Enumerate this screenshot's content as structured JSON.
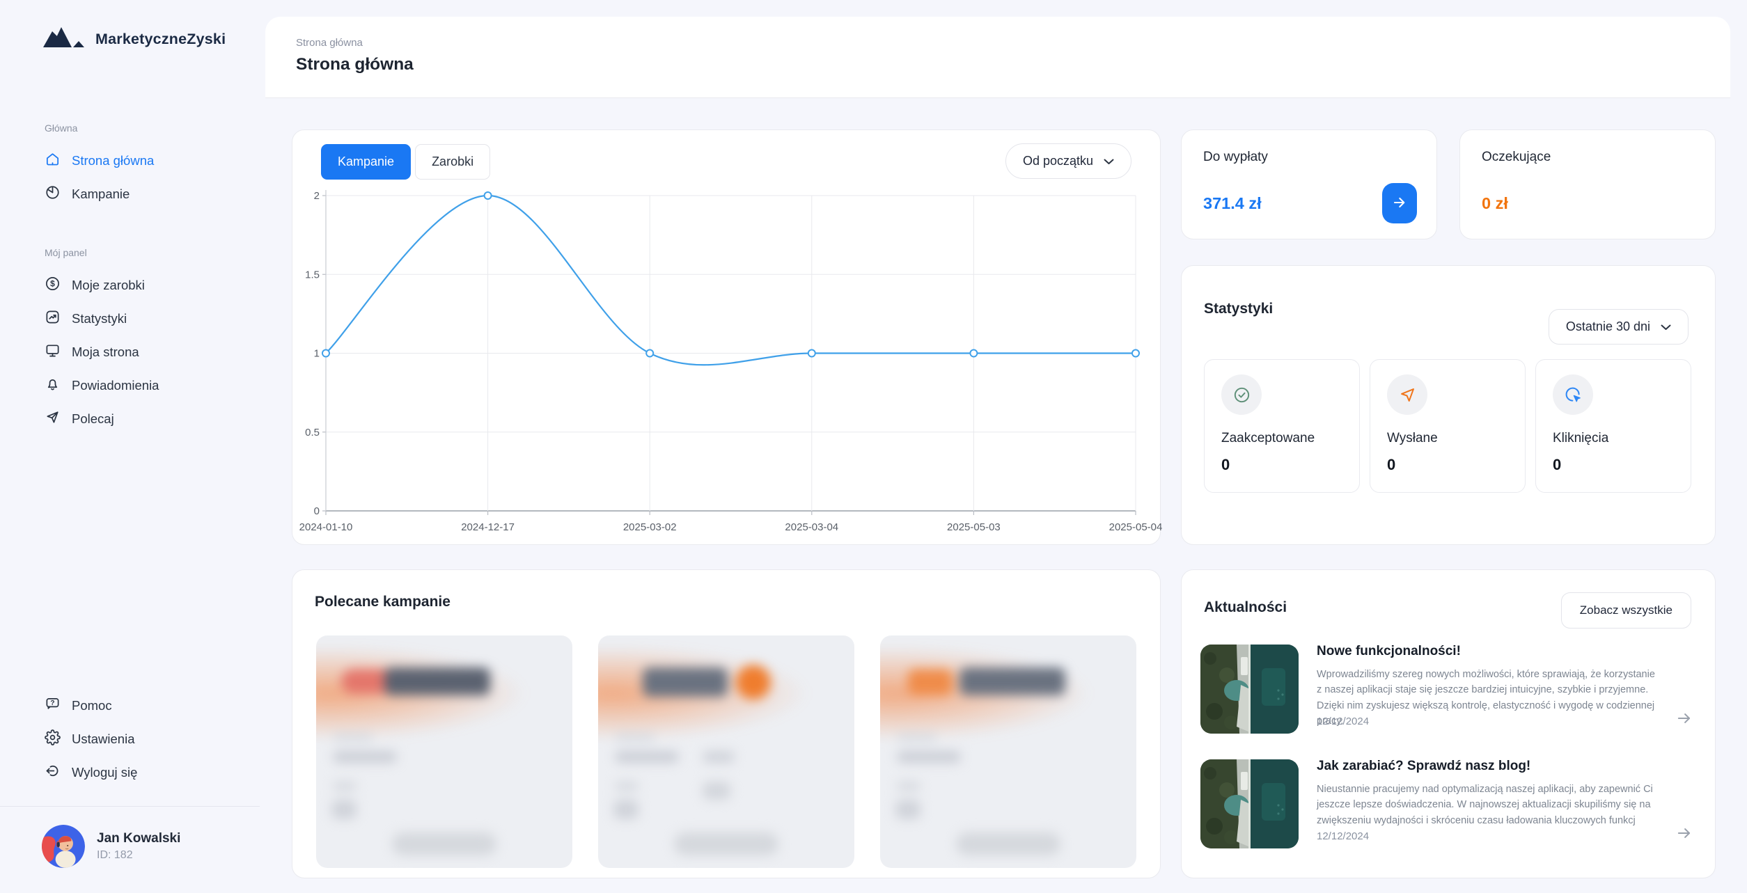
{
  "brand": {
    "name": "MarketyczneZyski"
  },
  "sidebar": {
    "sections": [
      {
        "label": "Główna",
        "items": [
          {
            "label": "Strona główna",
            "icon": "home-icon",
            "active": true
          },
          {
            "label": "Kampanie",
            "icon": "pie-chart-icon",
            "active": false
          }
        ]
      },
      {
        "label": "Mój panel",
        "items": [
          {
            "label": "Moje zarobki",
            "icon": "dollar-circle-icon",
            "active": false
          },
          {
            "label": "Statystyki",
            "icon": "trend-chart-icon",
            "active": false
          },
          {
            "label": "Moja strona",
            "icon": "monitor-icon",
            "active": false
          },
          {
            "label": "Powiadomienia",
            "icon": "bell-icon",
            "active": false
          },
          {
            "label": "Polecaj",
            "icon": "send-icon",
            "active": false
          }
        ]
      }
    ],
    "footer_items": [
      {
        "label": "Pomoc",
        "icon": "help-bubble-icon"
      },
      {
        "label": "Ustawienia",
        "icon": "gear-icon"
      },
      {
        "label": "Wyloguj się",
        "icon": "logout-icon"
      }
    ],
    "user": {
      "name": "Jan Kowalski",
      "id": "ID: 182"
    }
  },
  "header": {
    "breadcrumb": "Strona główna",
    "title": "Strona główna"
  },
  "chart_card": {
    "tabs": [
      {
        "label": "Kampanie",
        "active": true
      },
      {
        "label": "Zarobki",
        "active": false
      }
    ],
    "range": "Od początku"
  },
  "chart_data": {
    "type": "line",
    "title": "",
    "x": [
      "2024-01-10",
      "2024-12-17",
      "2025-03-02",
      "2025-03-04",
      "2025-05-03",
      "2025-05-04"
    ],
    "series": [
      {
        "name": "Kampanie",
        "values": [
          1,
          2,
          1,
          1,
          1,
          1
        ]
      }
    ],
    "ylim": [
      0,
      2
    ],
    "yticks": [
      0,
      0.5,
      1,
      1.5,
      2
    ],
    "line_color": "#3fa0e9",
    "marker": "open-circle",
    "grid": true,
    "smooth": true,
    "legend": "none"
  },
  "payout": {
    "label": "Do wypłaty",
    "value": "371.4 zł"
  },
  "pending": {
    "label": "Oczekujące",
    "value": "0 zł"
  },
  "stats": {
    "title": "Statystyki",
    "range": "Ostatnie 30 dni",
    "items": [
      {
        "label": "Zaakceptowane",
        "value": "0",
        "icon": "check-circle-icon",
        "color": "#5d8f77"
      },
      {
        "label": "Wysłane",
        "value": "0",
        "icon": "send-icon",
        "color": "#f0761c"
      },
      {
        "label": "Kliknięcia",
        "value": "0",
        "icon": "cursor-click-icon",
        "color": "#2e87f5"
      }
    ]
  },
  "campaigns": {
    "title": "Polecane kampanie",
    "cards_count": 3
  },
  "news": {
    "title": "Aktualności",
    "see_all": "Zobacz wszystkie",
    "items": [
      {
        "title": "Nowe funkcjonalności!",
        "body": "Wprowadziliśmy szereg nowych możliwości, które sprawiają, że korzystanie z naszej aplikacji staje się jeszcze bardziej intuicyjne, szybkie i przyjemne. Dzięki nim zyskujesz większą kontrolę, elastyczność i wygodę w codziennej pracy.",
        "date": "12/12/2024"
      },
      {
        "title": "Jak zarabiać? Sprawdź nasz blog!",
        "body": "Nieustannie pracujemy nad optymalizacją naszej aplikacji, aby zapewnić Ci jeszcze lepsze doświadczenia. W najnowszej aktualizacji skupiliśmy się na zwiększeniu wydajności i skróceniu czasu ładowania kluczowych funkcj",
        "date": "12/12/2024"
      }
    ]
  },
  "colors": {
    "accent_blue": "#1a78f3",
    "accent_orange": "#f2740d",
    "chart_blue": "#3fa0e9",
    "navy": "#1b2a44"
  }
}
